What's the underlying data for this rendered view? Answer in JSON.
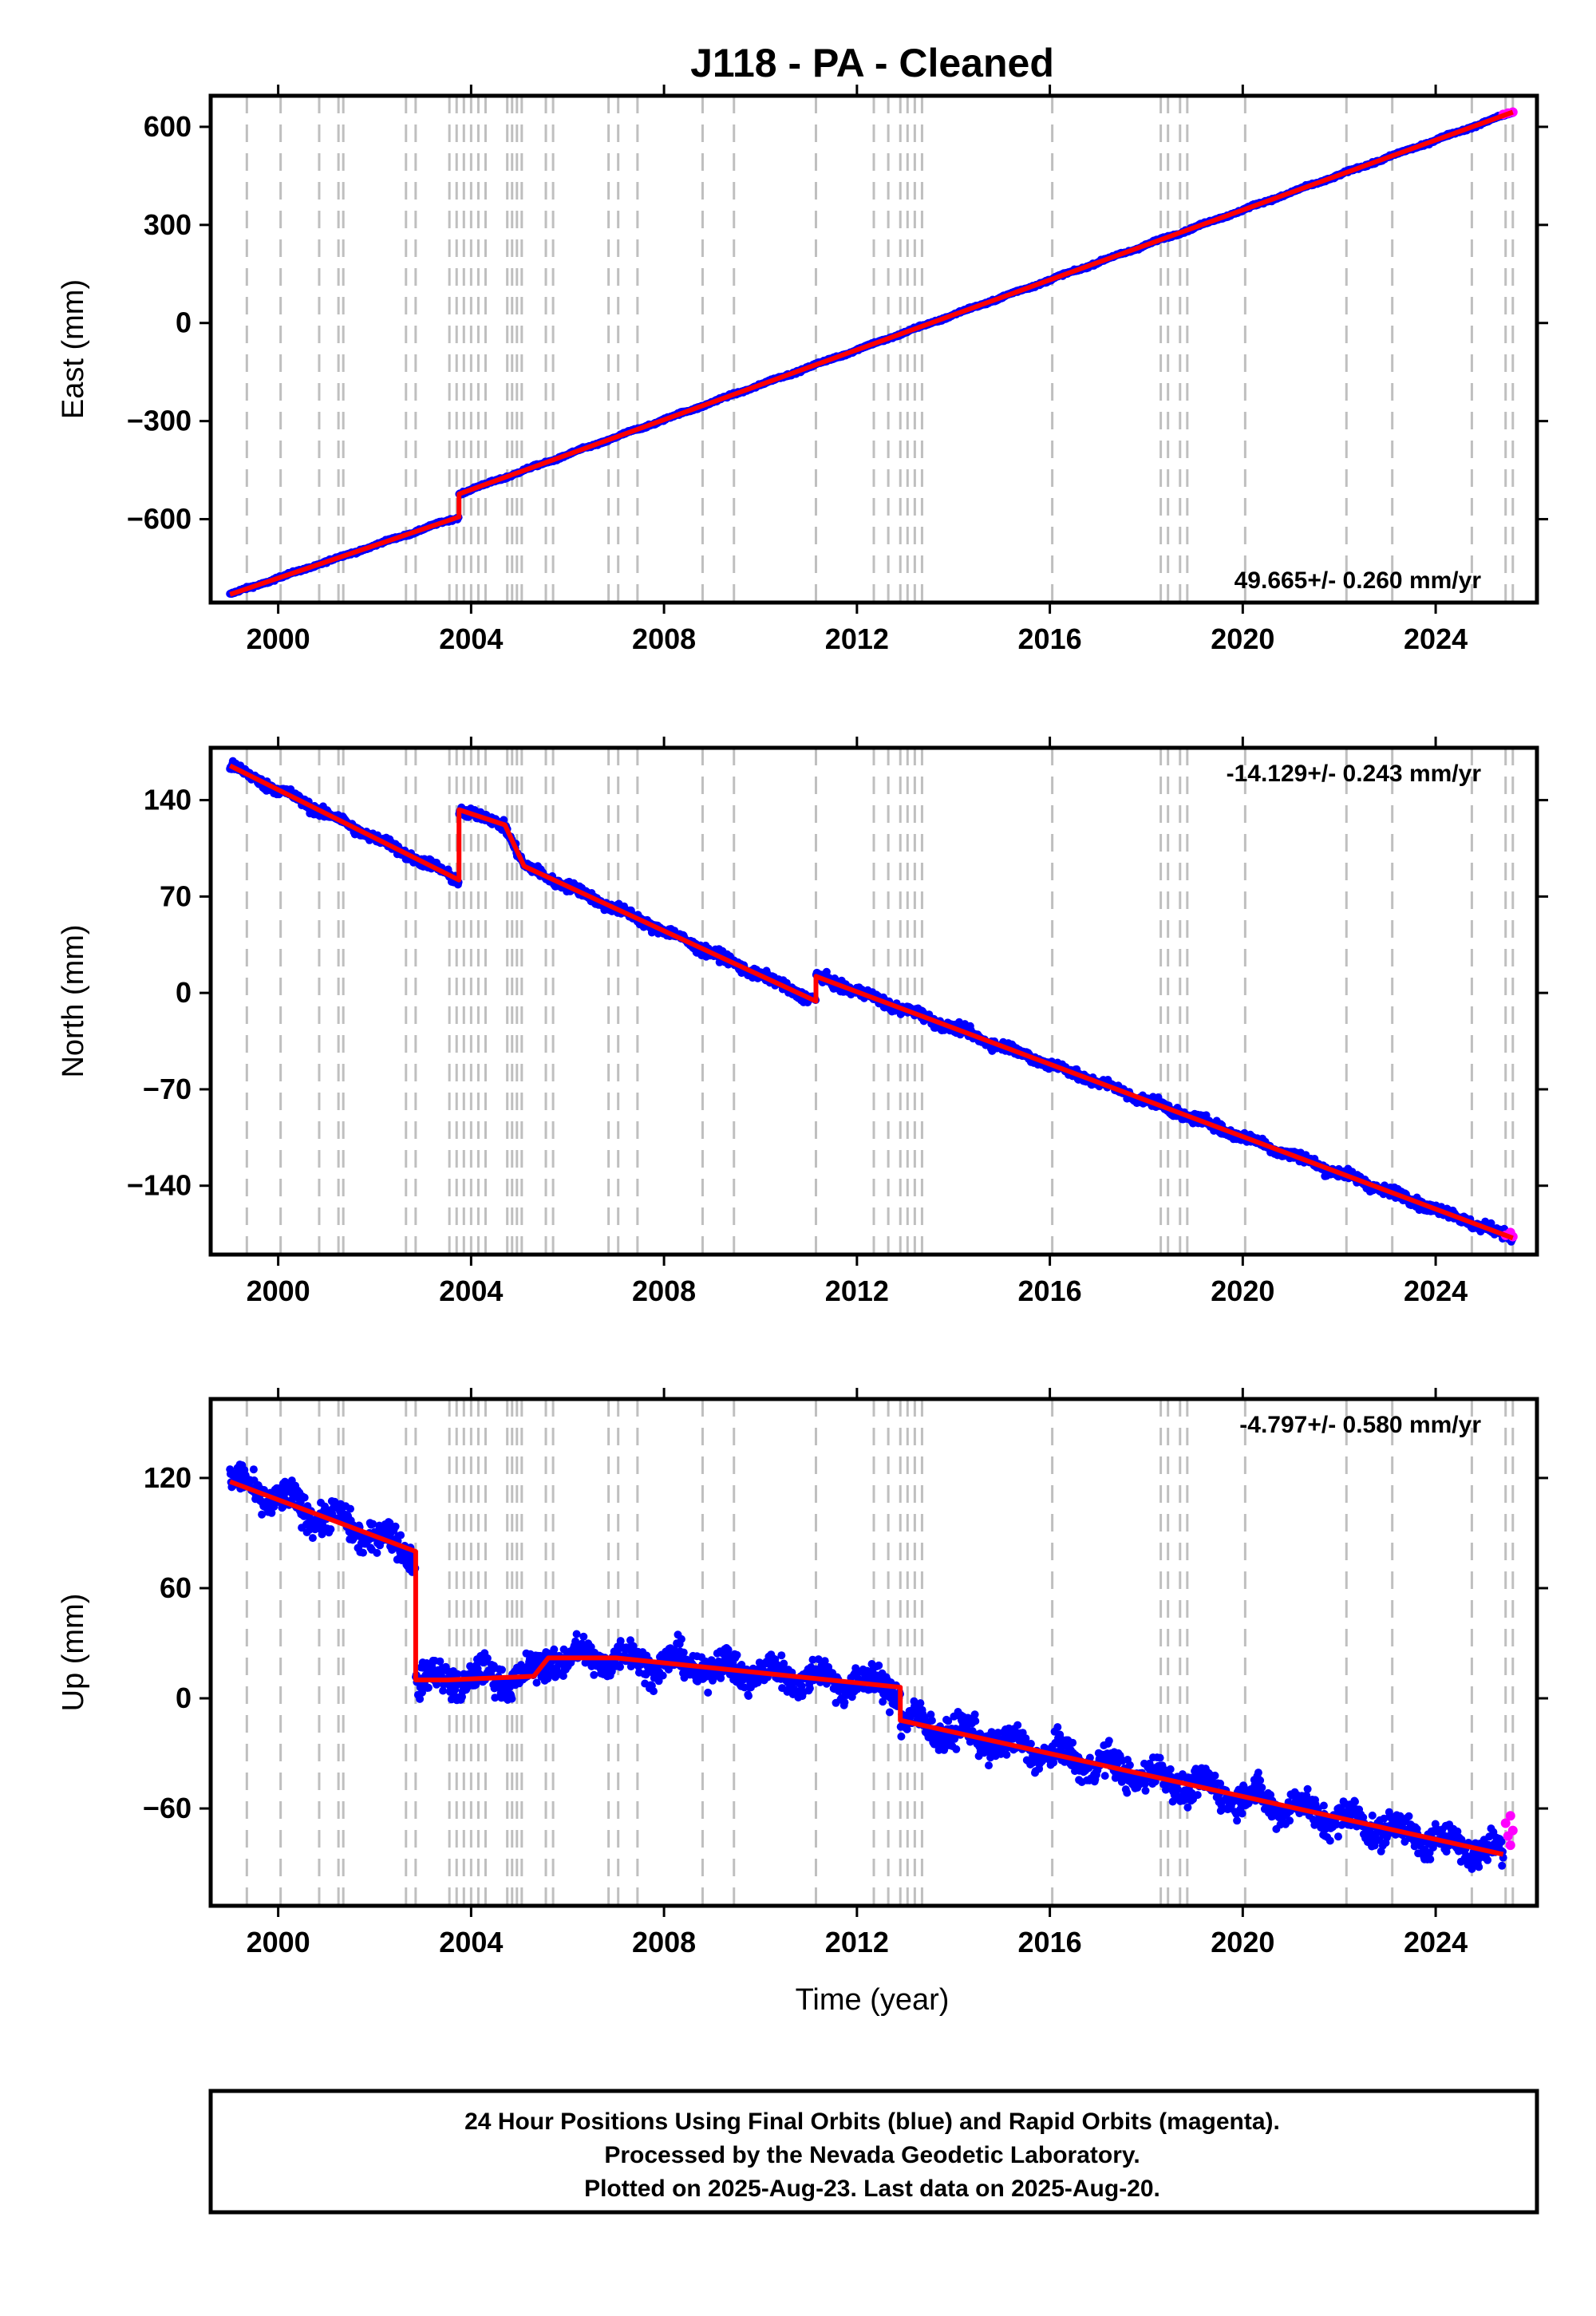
{
  "chart_data": {
    "title": "J118  - PA - Cleaned",
    "type": "scatter",
    "xlabel": "Time (year)",
    "xticks": [
      2000,
      2004,
      2008,
      2012,
      2016,
      2020,
      2024
    ],
    "xlim": [
      1998.6,
      2026.1
    ],
    "event_lines": [
      1999.35,
      2000.05,
      2000.85,
      2001.25,
      2001.35,
      2002.65,
      2002.85,
      2003.55,
      2003.7,
      2003.85,
      2004.0,
      2004.15,
      2004.3,
      2004.75,
      2004.85,
      2004.95,
      2005.05,
      2005.55,
      2005.7,
      2006.85,
      2007.05,
      2007.45,
      2008.8,
      2009.45,
      2011.15,
      2012.35,
      2012.65,
      2012.9,
      2013.05,
      2013.2,
      2013.35,
      2016.05,
      2018.3,
      2018.45,
      2018.7,
      2018.85,
      2020.05,
      2022.15,
      2023.1,
      2024.75,
      2025.45,
      2025.6
    ],
    "colors": {
      "final_orbits": "#0000ff",
      "rapid_orbits": "#ff00ff",
      "model": "#ff0000",
      "event_line": "#bfbfbf"
    },
    "panels": [
      {
        "name": "east",
        "ylabel": "East (mm)",
        "yticks": [
          600,
          300,
          0,
          -300,
          -600
        ],
        "ylim": [
          -855,
          695
        ],
        "rate_label": "49.665+/- 0.260 mm/yr",
        "rate_position": "bottom-right",
        "model": [
          [
            1999.0,
            -830
          ],
          [
            2003.75,
            -593
          ],
          [
            2003.75,
            -523
          ],
          [
            2025.6,
            645
          ]
        ],
        "rapid_points": [
          [
            2025.4,
            638
          ],
          [
            2025.5,
            642
          ],
          [
            2025.6,
            645
          ]
        ],
        "scatter": 3,
        "seasonal": 2
      },
      {
        "name": "north",
        "ylabel": "North (mm)",
        "yticks": [
          140,
          70,
          0,
          -70,
          -140
        ],
        "ylim": [
          -190,
          178
        ],
        "rate_label": "-14.129+/- 0.243 mm/yr",
        "rate_position": "top-right",
        "model": [
          [
            1999.0,
            165
          ],
          [
            2003.75,
            82
          ],
          [
            2003.75,
            133
          ],
          [
            2004.7,
            122
          ],
          [
            2005.1,
            92
          ],
          [
            2011.15,
            -6
          ],
          [
            2011.15,
            12
          ],
          [
            2025.6,
            -178
          ]
        ],
        "rapid_points": [
          [
            2025.45,
            -176
          ],
          [
            2025.55,
            -174
          ],
          [
            2025.6,
            -177
          ]
        ],
        "scatter": 3,
        "seasonal": 1.5
      },
      {
        "name": "up",
        "ylabel": "Up (mm)",
        "yticks": [
          120,
          60,
          0,
          -60
        ],
        "ylim": [
          -113,
          163
        ],
        "rate_label": "-4.797+/- 0.580 mm/yr",
        "rate_position": "top-right",
        "model": [
          [
            1999.0,
            118
          ],
          [
            2002.85,
            80
          ],
          [
            2002.85,
            10
          ],
          [
            2003.5,
            10
          ],
          [
            2005.3,
            12
          ],
          [
            2005.6,
            22
          ],
          [
            2007.0,
            22
          ],
          [
            2012.9,
            6
          ],
          [
            2012.9,
            -12
          ],
          [
            2025.4,
            -85
          ]
        ],
        "rapid_points": [
          [
            2025.45,
            -68
          ],
          [
            2025.5,
            -75
          ],
          [
            2025.55,
            -80
          ],
          [
            2025.55,
            -64
          ],
          [
            2025.6,
            -72
          ]
        ],
        "scatter": 7,
        "seasonal": 5
      }
    ]
  },
  "footer": {
    "line1": "24 Hour Positions Using Final Orbits (blue) and Rapid Orbits (magenta).",
    "line2": "Processed by the Nevada Geodetic Laboratory.",
    "line3": "Plotted on 2025-Aug-23. Last data on 2025-Aug-20."
  }
}
